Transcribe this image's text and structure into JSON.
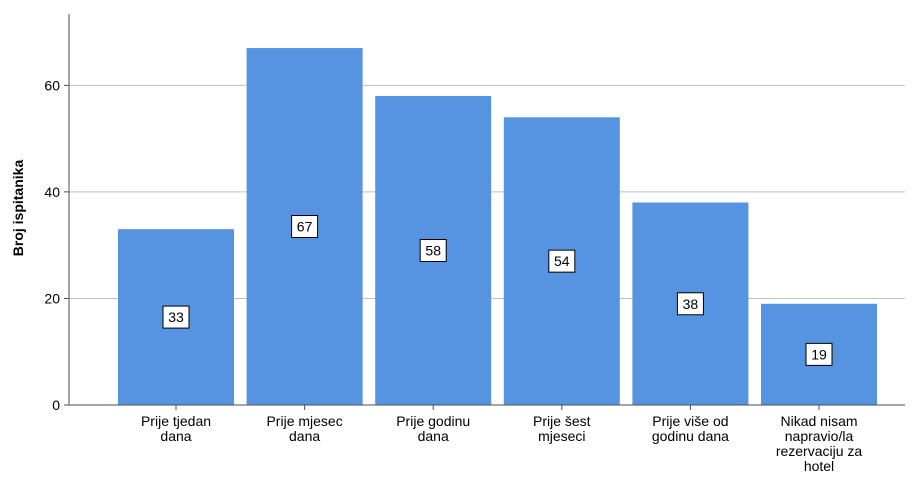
{
  "chart_data": {
    "type": "bar",
    "title": "",
    "xlabel": "",
    "ylabel": "Broj ispitanika",
    "categories": [
      [
        "Prije tjedan",
        "dana"
      ],
      [
        "Prije mjesec",
        "dana"
      ],
      [
        "Prije godinu",
        "dana"
      ],
      [
        "Prije šest",
        "mjeseci"
      ],
      [
        "Prije više od",
        "godinu dana"
      ],
      [
        "Nikad nisam",
        "napravio/la",
        "rezervaciju za",
        "hotel"
      ]
    ],
    "values": [
      33,
      67,
      58,
      54,
      38,
      19
    ],
    "data_labels": [
      "33",
      "67",
      "58",
      "54",
      "38",
      "19"
    ],
    "ylim": [
      0,
      70
    ],
    "yticks": [
      0,
      20,
      40,
      60
    ],
    "ytick_labels": [
      "0",
      "20",
      "40",
      "60"
    ],
    "grid": "horizontal",
    "bar_color": "#5694e2",
    "grid_color": "#bfbfbf",
    "axis_color": "#4d4d4d"
  }
}
